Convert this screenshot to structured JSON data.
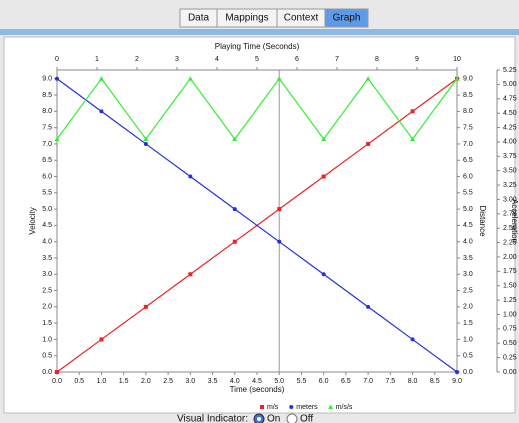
{
  "tabs": [
    "Data",
    "Mappings",
    "Context",
    "Graph"
  ],
  "chart_data": {
    "type": "line",
    "x2label": "Playing Time (Seconds)",
    "xlabel": "Time (seconds)",
    "ylabel": "Velocity",
    "y3label": "Distance",
    "y2label": "Acceleration",
    "x": [
      0,
      1,
      2,
      3,
      4,
      5,
      6,
      7,
      8,
      9
    ],
    "series": [
      {
        "name": "m/s",
        "color": "#ee2222",
        "marker": "square",
        "values": [
          0,
          1,
          2,
          3,
          4,
          5,
          6,
          7,
          8,
          9
        ]
      },
      {
        "name": "meters",
        "color": "#2233dd",
        "marker": "circle",
        "values": [
          9,
          8,
          7,
          6,
          5,
          4,
          3,
          2,
          1,
          0
        ]
      },
      {
        "name": "m/s/s",
        "color": "#33ee33",
        "marker": "triangle",
        "axis": "y2",
        "values": [
          4.05,
          5.1,
          4.05,
          5.1,
          4.05,
          5.1,
          4.05,
          5.1,
          4.05,
          5.1
        ]
      }
    ],
    "xlim": [
      0,
      9
    ],
    "xticks": [
      {
        "value": 0,
        "label": "0.0"
      },
      {
        "value": 0.5,
        "label": "0.5"
      },
      {
        "value": 1,
        "label": "1.0"
      },
      {
        "value": 1.5,
        "label": "1.5"
      },
      {
        "value": 2,
        "label": "2.0"
      },
      {
        "value": 2.5,
        "label": "2.5"
      },
      {
        "value": 3,
        "label": "3.0"
      },
      {
        "value": 3.5,
        "label": "3.5"
      },
      {
        "value": 4,
        "label": "4.0"
      },
      {
        "value": 4.5,
        "label": "4.5"
      },
      {
        "value": 5,
        "label": "5.0"
      },
      {
        "value": 5.5,
        "label": "5.5"
      },
      {
        "value": 6,
        "label": "6.0"
      },
      {
        "value": 6.5,
        "label": "6.5"
      },
      {
        "value": 7,
        "label": "7.0"
      },
      {
        "value": 7.5,
        "label": "7.5"
      },
      {
        "value": 8,
        "label": "8.0"
      },
      {
        "value": 8.5,
        "label": "8.5"
      },
      {
        "value": 9,
        "label": "9.0"
      }
    ],
    "x2lim": [
      0,
      10
    ],
    "x2ticks": [
      0,
      1,
      2,
      3,
      4,
      5,
      6,
      7,
      8,
      9,
      10
    ],
    "ylim": [
      0,
      9.27
    ],
    "yticks": [
      {
        "value": 0,
        "label": "0.0"
      },
      {
        "value": 0.5,
        "label": "0.5"
      },
      {
        "value": 1,
        "label": "1.0"
      },
      {
        "value": 1.5,
        "label": "1.5"
      },
      {
        "value": 2,
        "label": "2.0"
      },
      {
        "value": 2.5,
        "label": "2.5"
      },
      {
        "value": 3,
        "label": "3.0"
      },
      {
        "value": 3.5,
        "label": "3.5"
      },
      {
        "value": 4,
        "label": "4.0"
      },
      {
        "value": 4.5,
        "label": "4.5"
      },
      {
        "value": 5,
        "label": "5.0"
      },
      {
        "value": 5.5,
        "label": "5.5"
      },
      {
        "value": 6,
        "label": "6.0"
      },
      {
        "value": 6.5,
        "label": "6.5"
      },
      {
        "value": 7,
        "label": "7.0"
      },
      {
        "value": 7.5,
        "label": "7.5"
      },
      {
        "value": 8,
        "label": "8.0"
      },
      {
        "value": 8.5,
        "label": "8.5"
      },
      {
        "value": 9,
        "label": "9.0"
      }
    ],
    "y3ticks": [
      {
        "value": 0,
        "label": "0.0"
      },
      {
        "value": 0.5,
        "label": "0.5"
      },
      {
        "value": 1,
        "label": "1.0"
      },
      {
        "value": 1.5,
        "label": "1.5"
      },
      {
        "value": 2,
        "label": "2.0"
      },
      {
        "value": 2.5,
        "label": "2.5"
      },
      {
        "value": 3,
        "label": "3.0"
      },
      {
        "value": 3.5,
        "label": "3.5"
      },
      {
        "value": 4,
        "label": "4.0"
      },
      {
        "value": 4.5,
        "label": "4.5"
      },
      {
        "value": 5,
        "label": "5.0"
      },
      {
        "value": 5.5,
        "label": "5.5"
      },
      {
        "value": 6,
        "label": "6.0"
      },
      {
        "value": 6.5,
        "label": "6.5"
      },
      {
        "value": 7,
        "label": "7.0"
      },
      {
        "value": 7.5,
        "label": "7.5"
      },
      {
        "value": 8,
        "label": "8.0"
      },
      {
        "value": 8.5,
        "label": "8.5"
      },
      {
        "value": 9,
        "label": "9.0"
      }
    ],
    "y2lim": [
      0,
      5.25
    ],
    "y2ticks": [
      {
        "value": 0,
        "label": "0.00"
      },
      {
        "value": 0.25,
        "label": "0.25"
      },
      {
        "value": 0.5,
        "label": "0.50"
      },
      {
        "value": 0.75,
        "label": "0.75"
      },
      {
        "value": 1,
        "label": "1.00"
      },
      {
        "value": 1.25,
        "label": "1.25"
      },
      {
        "value": 1.5,
        "label": "1.50"
      },
      {
        "value": 1.75,
        "label": "1.75"
      },
      {
        "value": 2,
        "label": "2.00"
      },
      {
        "value": 2.25,
        "label": "2.25"
      },
      {
        "value": 2.5,
        "label": "2.50"
      },
      {
        "value": 2.75,
        "label": "2.75"
      },
      {
        "value": 3,
        "label": "3.00"
      },
      {
        "value": 3.25,
        "label": "3.25"
      },
      {
        "value": 3.5,
        "label": "3.50"
      },
      {
        "value": 3.75,
        "label": "3.75"
      },
      {
        "value": 4,
        "label": "4.00"
      },
      {
        "value": 4.25,
        "label": "4.25"
      },
      {
        "value": 4.5,
        "label": "4.50"
      },
      {
        "value": 4.75,
        "label": "4.75"
      },
      {
        "value": 5,
        "label": "5.00"
      },
      {
        "value": 5.25,
        "label": "5.25"
      }
    ],
    "cursor_x": 5
  },
  "indicator": {
    "label": "Visual Indicator:",
    "options": [
      "On",
      "Off"
    ]
  }
}
